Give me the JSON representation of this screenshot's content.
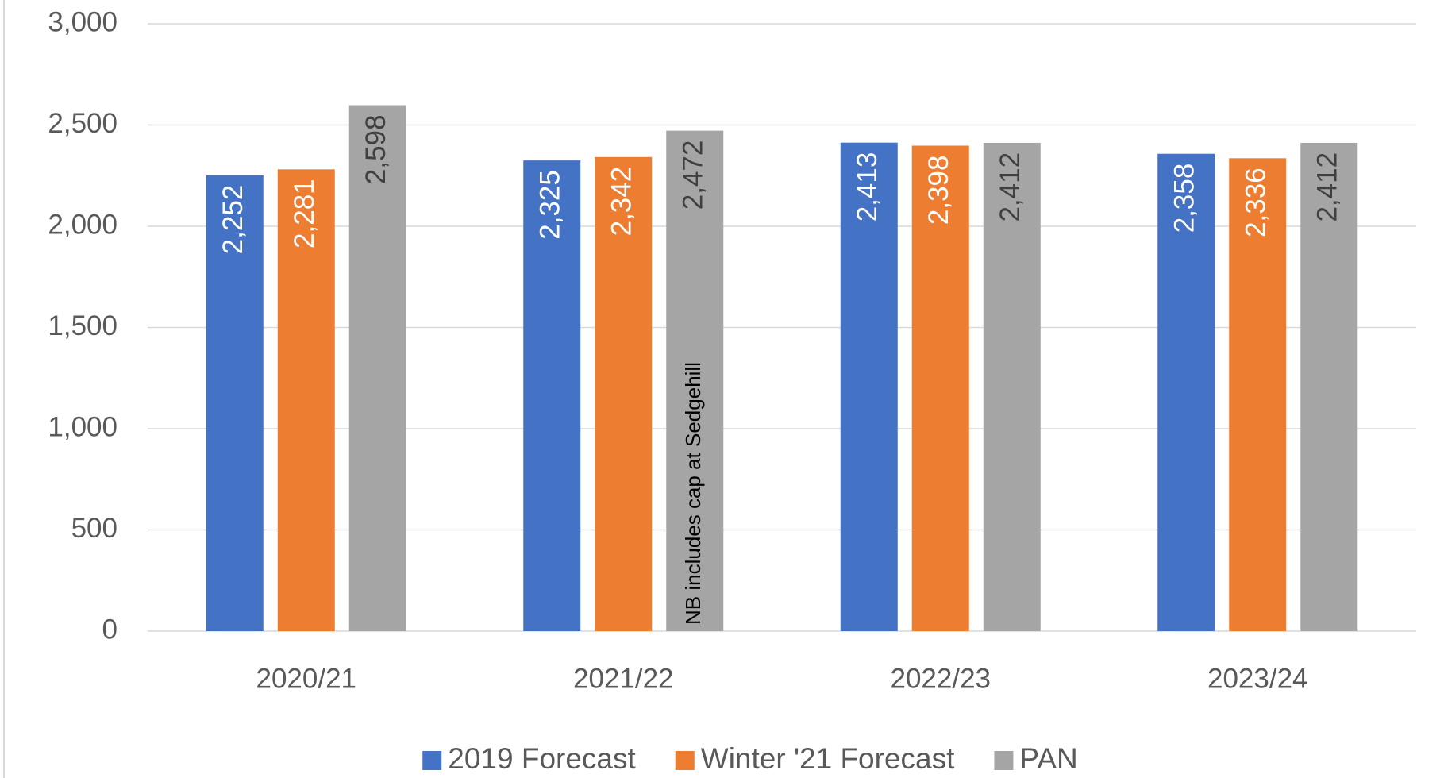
{
  "chart_data": {
    "type": "bar",
    "categories": [
      "2020/21",
      "2021/22",
      "2022/23",
      "2023/24"
    ],
    "series": [
      {
        "name": "2019 Forecast",
        "color": "#4472c4",
        "values": [
          2252,
          2325,
          2413,
          2358
        ],
        "value_labels": [
          "2,252",
          "2,325",
          "2,413",
          "2,358"
        ]
      },
      {
        "name": "Winter '21 Forecast",
        "color": "#ed7d31",
        "values": [
          2281,
          2342,
          2398,
          2336
        ],
        "value_labels": [
          "2,281",
          "2,342",
          "2,398",
          "2,336"
        ]
      },
      {
        "name": "PAN",
        "color": "#a5a5a5",
        "values": [
          2598,
          2472,
          2412,
          2412
        ],
        "value_labels": [
          "2,598",
          "2,472",
          "2,412",
          "2,412"
        ]
      }
    ],
    "ylim": [
      0,
      3000
    ],
    "yticks": [
      0,
      500,
      {
        "value": 1000,
        "label": "1,000"
      },
      {
        "value": 1500,
        "label": "1,500"
      },
      {
        "value": 2000,
        "label": "2,000"
      },
      {
        "value": 2500,
        "label": "2,500"
      },
      {
        "value": 3000,
        "label": "3,000"
      }
    ],
    "grid": true,
    "legend": "bottom",
    "annotation": "NB includes cap at Sedgehill"
  }
}
